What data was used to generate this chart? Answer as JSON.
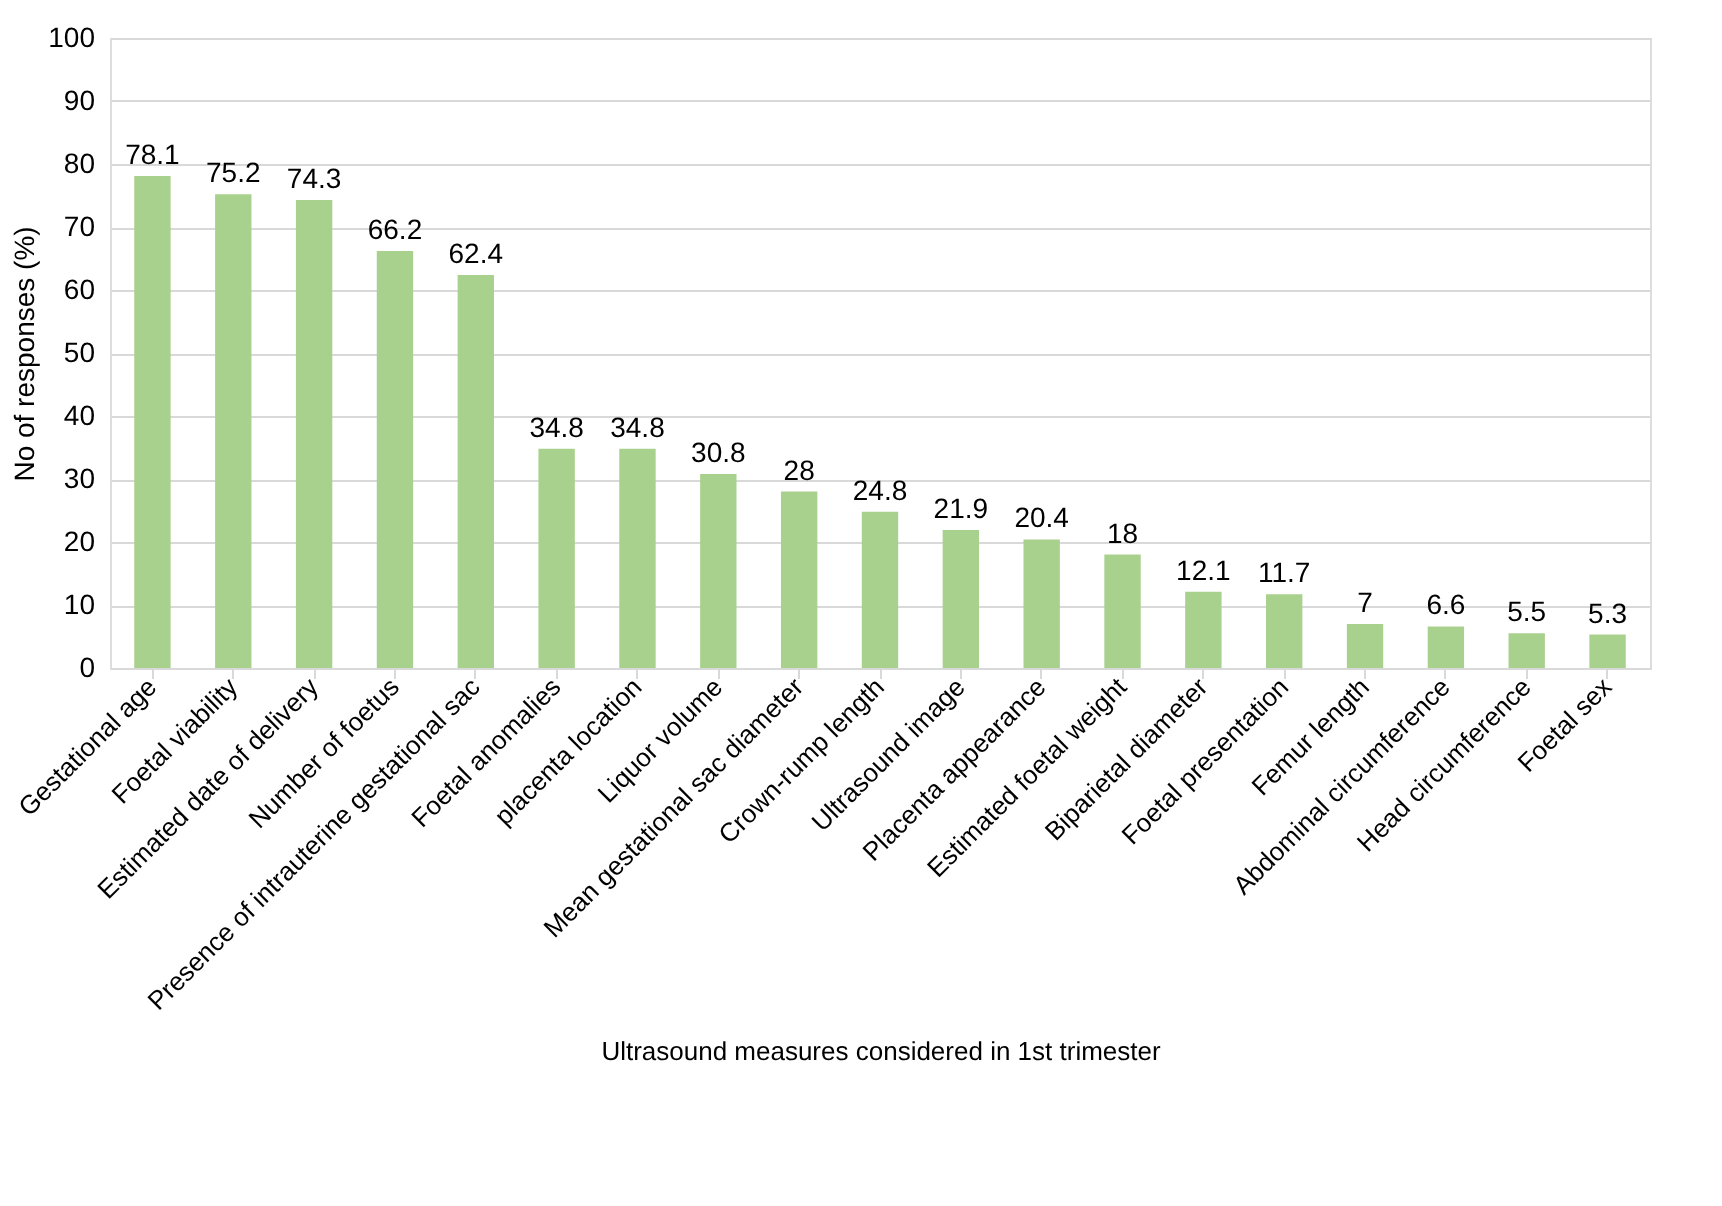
{
  "chart_data": {
    "type": "bar",
    "xlabel": "Ultrasound measures considered in 1st trimester",
    "ylabel": "No of responses (%)",
    "categories": [
      "Gestational age",
      "Foetal viability",
      "Estimated date of delivery",
      "Number of foetus",
      "Presence of intrauterine gestational sac",
      "Foetal anomalies",
      "placenta location",
      "Liquor volume",
      "Mean gestational sac diameter",
      "Crown-rump length",
      "Ultrasound image",
      "Placenta appearance",
      "Estimated foetal weight",
      "Biparietal diameter",
      "Foetal presentation",
      "Femur length",
      "Abdominal circumference",
      "Head circumference",
      "Foetal sex"
    ],
    "values": [
      78.1,
      75.2,
      74.3,
      66.2,
      62.4,
      34.8,
      34.8,
      30.8,
      28,
      24.8,
      21.9,
      20.4,
      18,
      12.1,
      11.7,
      7,
      6.6,
      5.5,
      5.3
    ],
    "color": "#a9d18e",
    "ylim": [
      0,
      100
    ],
    "yticks": [
      0,
      10,
      20,
      30,
      40,
      50,
      60,
      70,
      80,
      90,
      100
    ],
    "grid": "y",
    "data_labels": true
  }
}
